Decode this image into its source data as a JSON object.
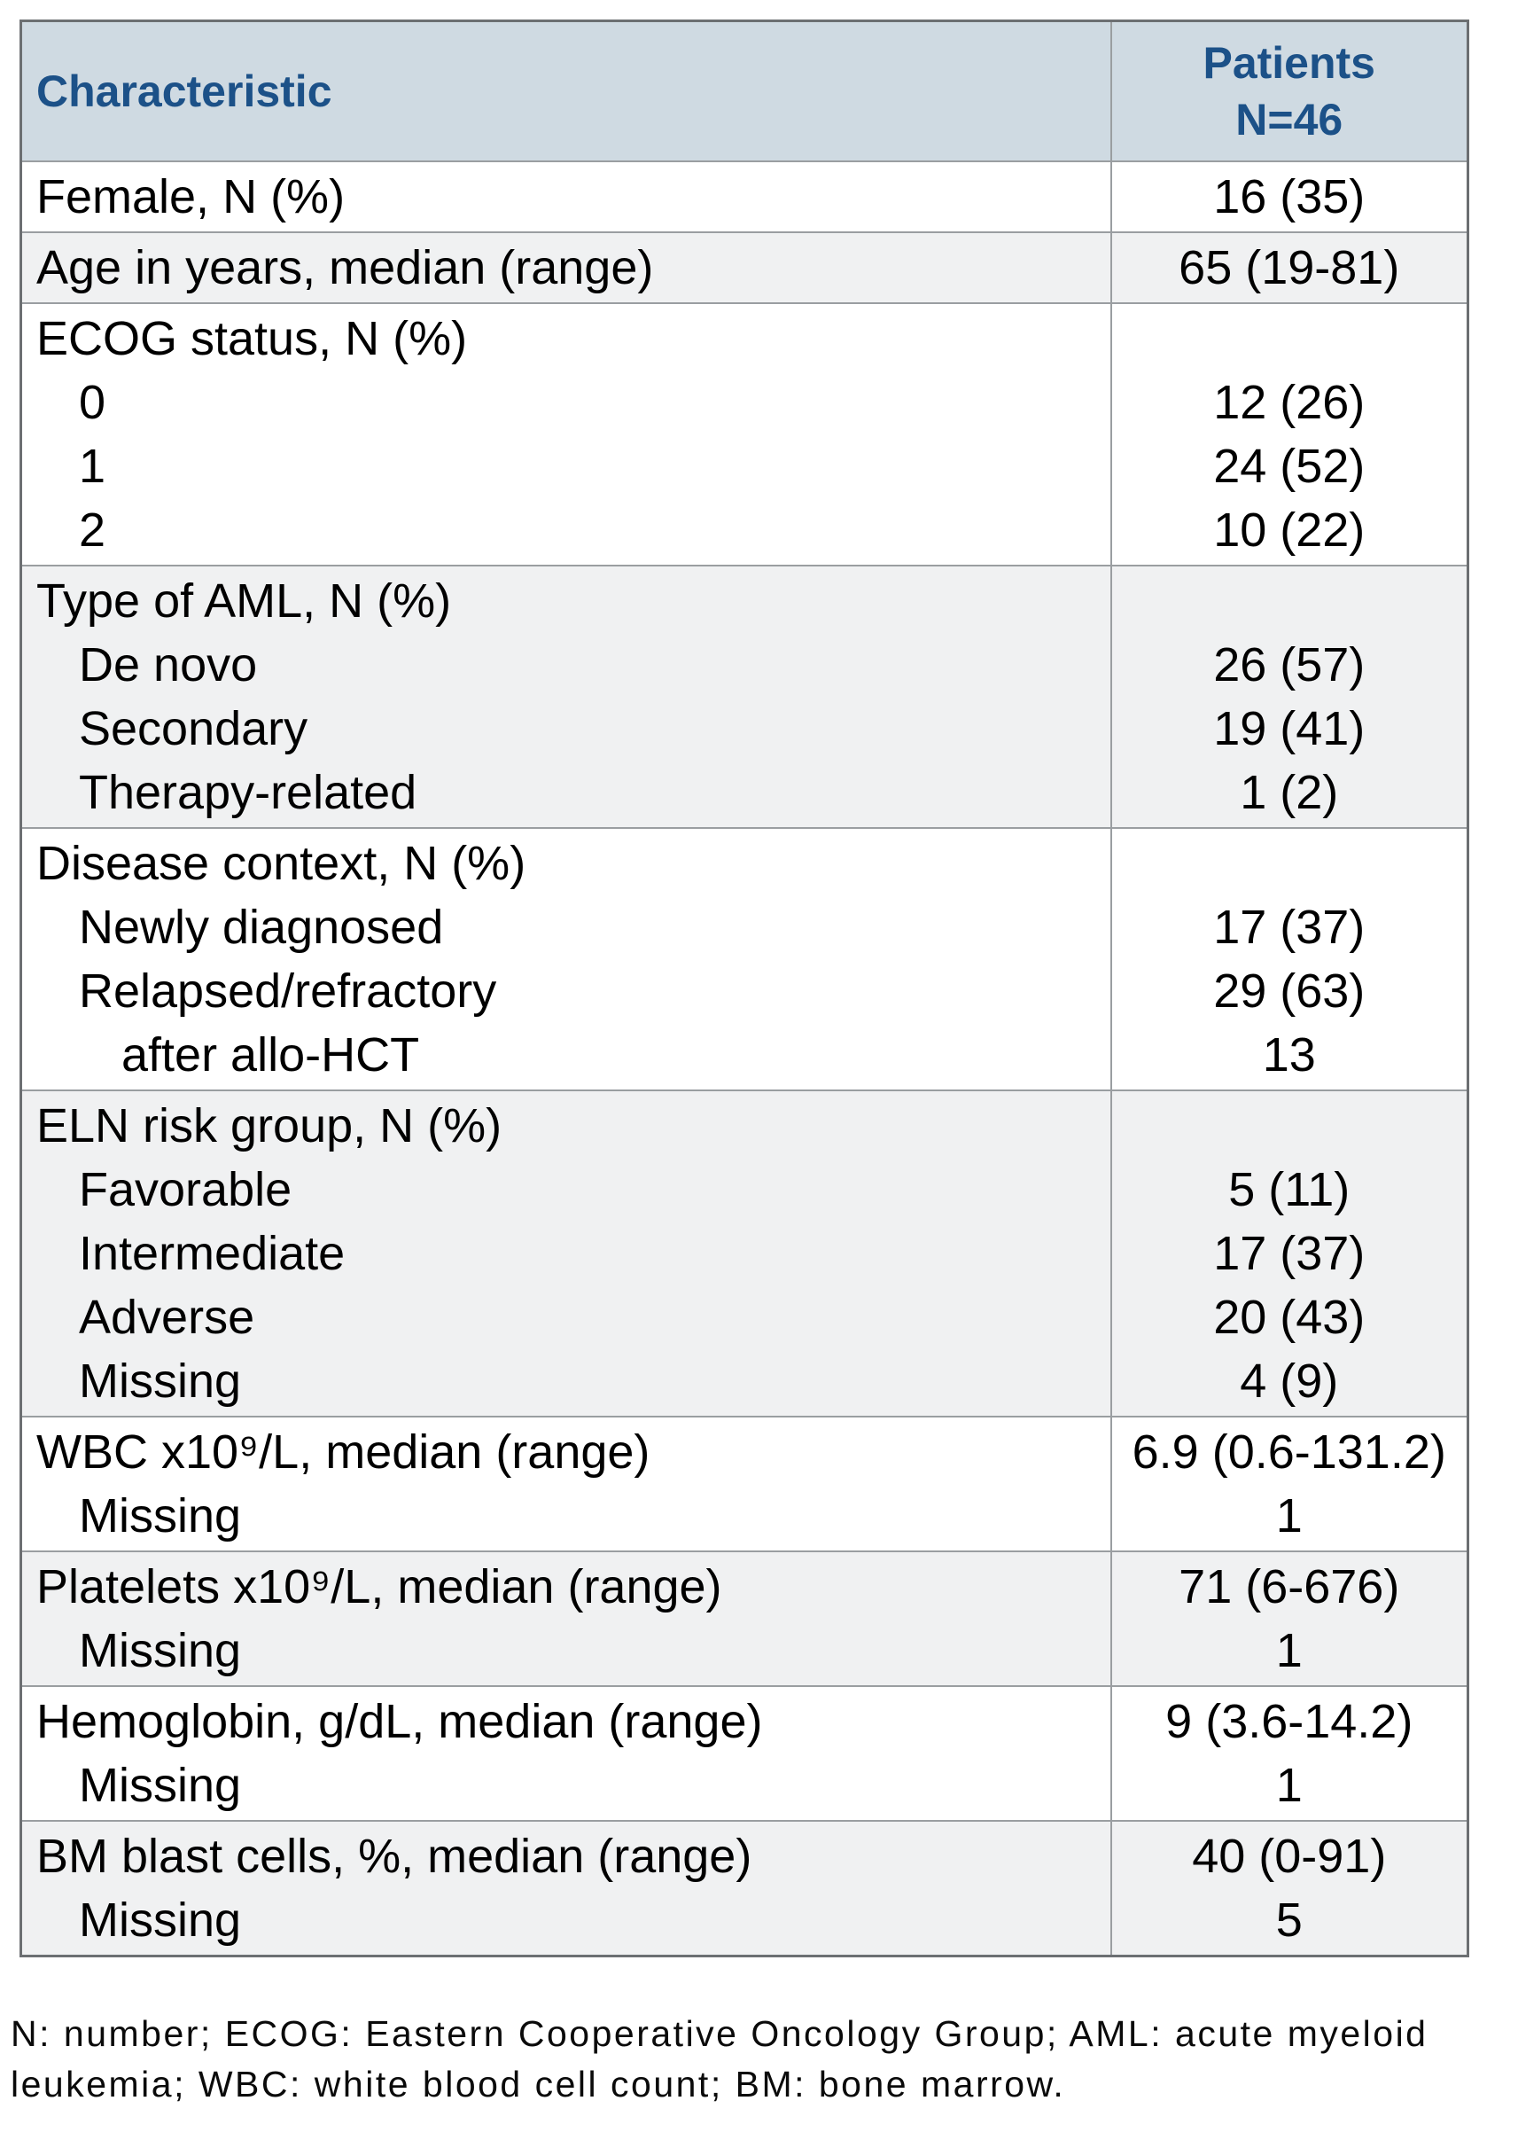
{
  "table": {
    "header": {
      "characteristic": "Characteristic",
      "patients": "Patients",
      "patients_n": "N=46"
    },
    "groups": [
      {
        "key": "female",
        "rows": [
          {
            "label": "Female, N (%)",
            "indent": 0,
            "value": "16 (35)"
          }
        ]
      },
      {
        "key": "age",
        "rows": [
          {
            "label": "Age in years, median (range)",
            "indent": 0,
            "value": "65 (19-81)"
          }
        ]
      },
      {
        "key": "ecog",
        "rows": [
          {
            "label": "ECOG status, N (%)",
            "indent": 0,
            "value": ""
          },
          {
            "label": "0",
            "indent": 1,
            "value": "12 (26)"
          },
          {
            "label": "1",
            "indent": 1,
            "value": "24 (52)"
          },
          {
            "label": "2",
            "indent": 1,
            "value": "10 (22)"
          }
        ]
      },
      {
        "key": "aml-type",
        "rows": [
          {
            "label": "Type of AML, N (%)",
            "indent": 0,
            "value": ""
          },
          {
            "label": "De novo",
            "indent": 1,
            "value": "26 (57)"
          },
          {
            "label": "Secondary",
            "indent": 1,
            "value": "19 (41)"
          },
          {
            "label": "Therapy-related",
            "indent": 1,
            "value": "1 (2)"
          }
        ]
      },
      {
        "key": "disease-context",
        "rows": [
          {
            "label": "Disease context, N (%)",
            "indent": 0,
            "value": ""
          },
          {
            "label": "Newly diagnosed",
            "indent": 1,
            "value": "17 (37)"
          },
          {
            "label": "Relapsed/refractory",
            "indent": 1,
            "value": "29 (63)"
          },
          {
            "label": "after allo-HCT",
            "indent": 2,
            "value": "13"
          }
        ]
      },
      {
        "key": "eln-risk",
        "rows": [
          {
            "label": "ELN risk group, N (%)",
            "indent": 0,
            "value": ""
          },
          {
            "label": "Favorable",
            "indent": 1,
            "value": "5 (11)"
          },
          {
            "label": "Intermediate",
            "indent": 1,
            "value": "17 (37)"
          },
          {
            "label": "Adverse",
            "indent": 1,
            "value": "20 (43)"
          },
          {
            "label": "Missing",
            "indent": 1,
            "value": "4 (9)"
          }
        ]
      },
      {
        "key": "wbc",
        "rows": [
          {
            "label": "WBC x10⁹/L, median (range)",
            "indent": 0,
            "value": "6.9 (0.6-131.2)"
          },
          {
            "label": "Missing",
            "indent": 1,
            "value": "1"
          }
        ]
      },
      {
        "key": "platelets",
        "rows": [
          {
            "label": "Platelets x10⁹/L, median (range)",
            "indent": 0,
            "value": "71 (6-676)"
          },
          {
            "label": "Missing",
            "indent": 1,
            "value": "1"
          }
        ]
      },
      {
        "key": "hemoglobin",
        "rows": [
          {
            "label": "Hemoglobin, g/dL, median (range)",
            "indent": 0,
            "value": "9 (3.6-14.2)"
          },
          {
            "label": "Missing",
            "indent": 1,
            "value": "1"
          }
        ]
      },
      {
        "key": "bm-blasts",
        "rows": [
          {
            "label": "BM blast cells, %, median (range)",
            "indent": 0,
            "value": "40 (0-91)"
          },
          {
            "label": "Missing",
            "indent": 1,
            "value": "5"
          }
        ]
      }
    ]
  },
  "footnote": "N: number; ECOG: Eastern Cooperative Oncology Group; AML: acute myeloid leukemia; WBC: white blood cell count; BM: bone marrow.",
  "colors": {
    "header_bg": "#cfdae2",
    "header_text": "#1c5188",
    "band_gray": "#f0f1f2",
    "band_white": "#ffffff",
    "outer_border": "#6c6f72",
    "inner_border": "#9a9ea1",
    "body_text": "#000000"
  }
}
